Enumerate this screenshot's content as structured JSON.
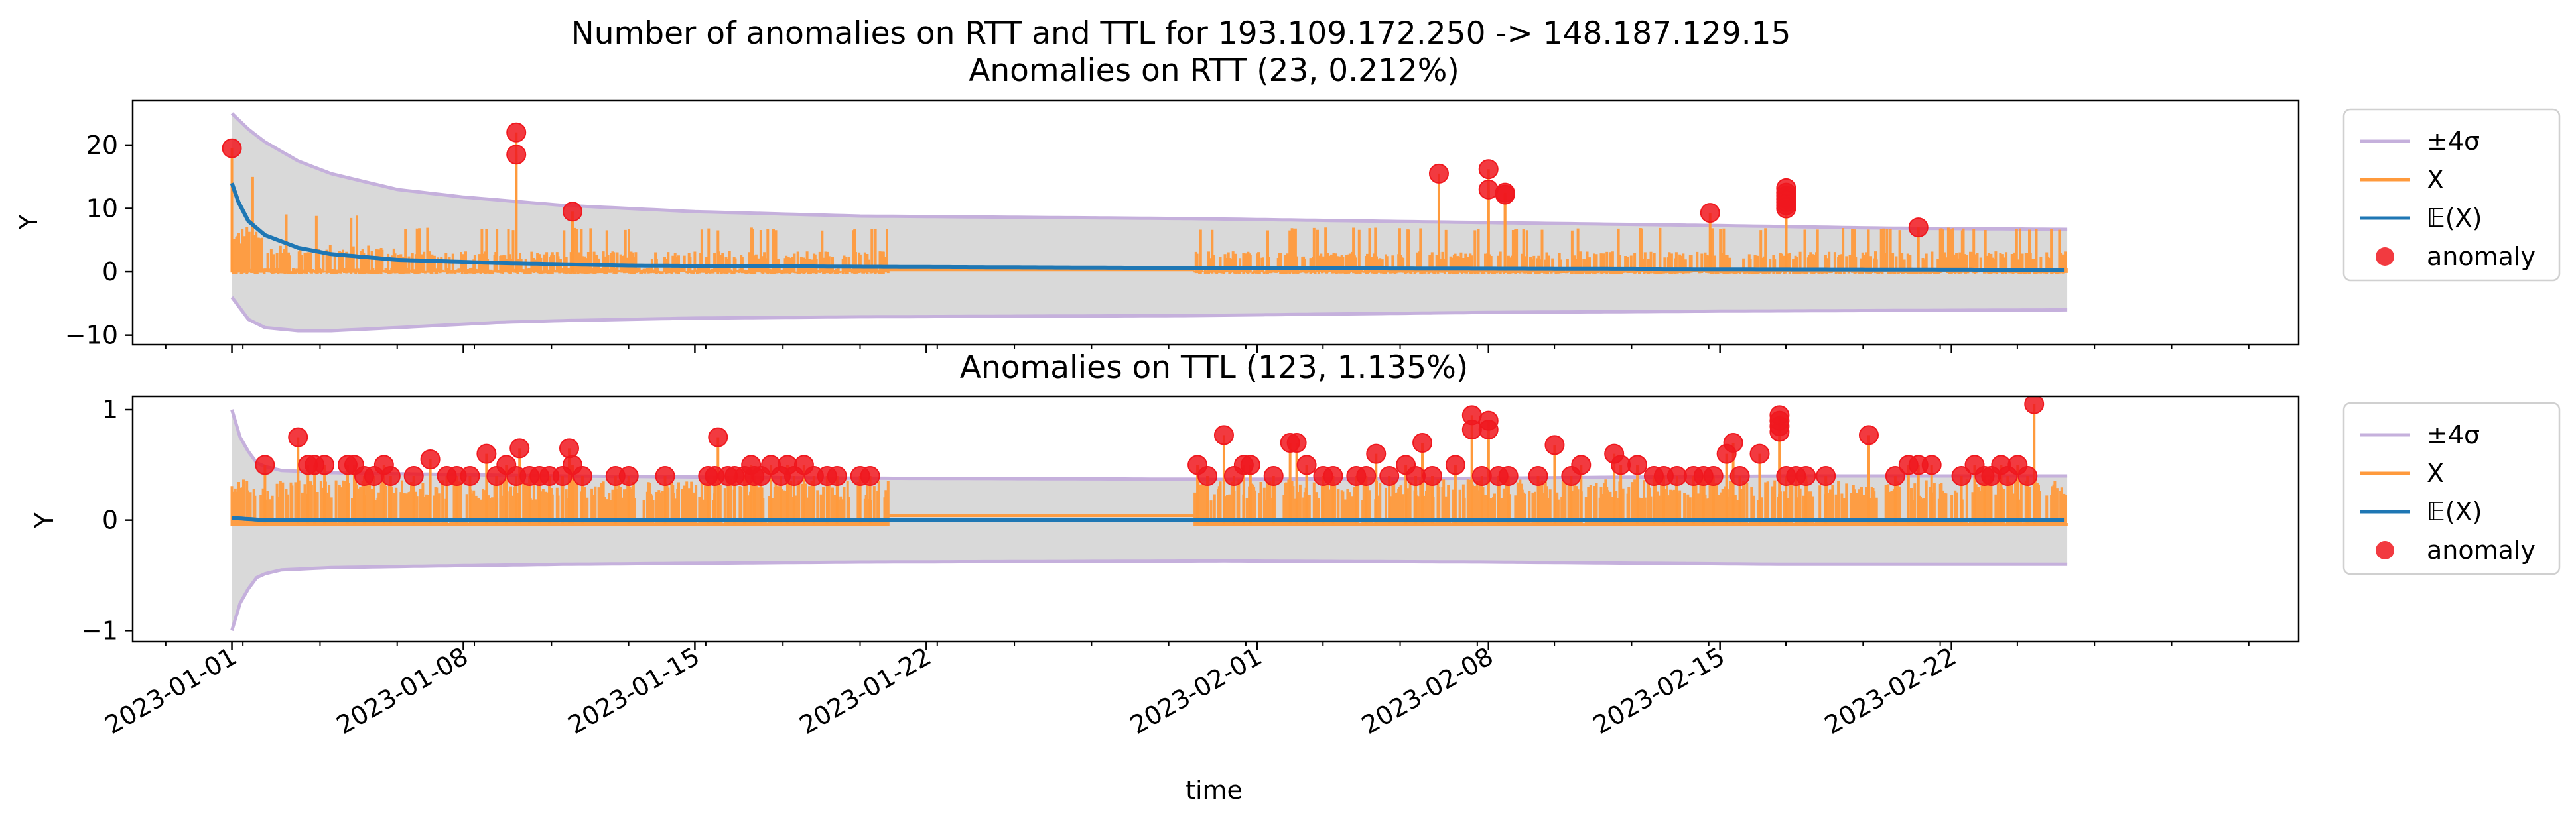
{
  "figure": {
    "suptitle": "Number of anomalies on RTT and TTL for 193.109.172.250 -> 148.187.129.15",
    "xlabel": "time",
    "colors": {
      "band_fill": "#d9d9d9",
      "band_line": "#c5b0dc",
      "x_series": "#ff9a3c",
      "expectation": "#1f77b4",
      "anomaly": "#f0181e"
    }
  },
  "legend": {
    "items": [
      "±4σ",
      "X",
      "𝔼(X)",
      "anomaly"
    ],
    "placement": "outside right, top of each panel"
  },
  "chart_data": [
    {
      "type": "line",
      "title": "Anomalies on RTT (23, 0.212%)",
      "xlabel": "time",
      "ylabel": "Y",
      "ylim": [
        -11.5,
        27
      ],
      "yticks": [
        -10,
        0,
        10,
        20
      ],
      "xlim": [
        "2022-12-28",
        "2023-02-28"
      ],
      "xticks": [
        "2023-01-01",
        "2023-01-08",
        "2023-01-15",
        "2023-01-22",
        "2023-02-01",
        "2023-02-08",
        "2023-02-15",
        "2023-02-22"
      ],
      "data_gaps": [
        [
          "2023-01-20.5",
          "2023-01-30"
        ]
      ],
      "series": [
        {
          "name": "±4σ",
          "upper": [
            [
              0,
              25
            ],
            [
              0.5,
              22.5
            ],
            [
              1,
              20.5
            ],
            [
              2,
              17.5
            ],
            [
              3,
              15.5
            ],
            [
              5,
              13
            ],
            [
              7,
              11.8
            ],
            [
              10,
              10.5
            ],
            [
              14,
              9.5
            ],
            [
              19,
              8.8
            ],
            [
              29,
              8.4
            ],
            [
              36,
              7.9
            ],
            [
              45,
              7.3
            ],
            [
              50,
              6.9
            ],
            [
              55.5,
              6.7
            ]
          ],
          "lower": [
            [
              0,
              -4
            ],
            [
              0.5,
              -7.5
            ],
            [
              1,
              -8.8
            ],
            [
              2,
              -9.3
            ],
            [
              3,
              -9.3
            ],
            [
              5,
              -8.8
            ],
            [
              8,
              -8
            ],
            [
              10,
              -7.7
            ],
            [
              14,
              -7.3
            ],
            [
              19,
              -7.1
            ],
            [
              29,
              -6.9
            ],
            [
              38,
              -6.4
            ],
            [
              45,
              -6.2
            ],
            [
              50,
              -6.1
            ],
            [
              55.5,
              -6
            ]
          ]
        },
        {
          "name": "X",
          "baseline": 0,
          "spike_peak_typical": 5
        },
        {
          "name": "𝔼(X)",
          "values": [
            [
              0,
              14
            ],
            [
              0.2,
              11
            ],
            [
              0.5,
              8
            ],
            [
              1,
              5.8
            ],
            [
              2,
              3.8
            ],
            [
              3,
              2.8
            ],
            [
              5,
              1.9
            ],
            [
              8,
              1.4
            ],
            [
              12,
              1.0
            ],
            [
              19,
              0.8
            ],
            [
              29,
              0.6
            ],
            [
              45,
              0.4
            ],
            [
              55.5,
              0.3
            ]
          ]
        },
        {
          "name": "anomaly",
          "points": [
            [
              0,
              19.5
            ],
            [
              8.6,
              22
            ],
            [
              8.6,
              18.5
            ],
            [
              10.3,
              9.5
            ],
            [
              36.5,
              15.5
            ],
            [
              38,
              16.2
            ],
            [
              38,
              13
            ],
            [
              38.5,
              12.5
            ],
            [
              38.5,
              12.2
            ],
            [
              44.7,
              9.3
            ],
            [
              47,
              13.2
            ],
            [
              47,
              12.5
            ],
            [
              47,
              12
            ],
            [
              47,
              11.5
            ],
            [
              47,
              11
            ],
            [
              47,
              10.5
            ],
            [
              47,
              10
            ],
            [
              51,
              7
            ]
          ]
        }
      ]
    },
    {
      "type": "line",
      "title": "Anomalies on TTL (123, 1.135%)",
      "xlabel": "time",
      "ylabel": "Y",
      "ylim": [
        -1.1,
        1.12
      ],
      "yticks": [
        -1,
        0,
        1
      ],
      "xlim": [
        "2023-01-01 -3d",
        "2023-02-28"
      ],
      "xticks": [
        "2023-01-01",
        "2023-01-08",
        "2023-01-15",
        "2023-01-22",
        "2023-02-01",
        "2023-02-08",
        "2023-02-15",
        "2023-02-22"
      ],
      "series": [
        {
          "name": "±4σ",
          "upper": [
            [
              0,
              1.0
            ],
            [
              0.3,
              0.7
            ],
            [
              0.8,
              0.5
            ],
            [
              1.5,
              0.45
            ],
            [
              3,
              0.43
            ],
            [
              5,
              0.42
            ],
            [
              10,
              0.4
            ],
            [
              19,
              0.38
            ],
            [
              30,
              0.37
            ],
            [
              38,
              0.38
            ],
            [
              47,
              0.4
            ],
            [
              55.5,
              0.4
            ]
          ],
          "lower": [
            [
              0,
              -1.0
            ],
            [
              0.3,
              -0.7
            ],
            [
              0.8,
              -0.5
            ],
            [
              1.5,
              -0.45
            ],
            [
              3,
              -0.43
            ],
            [
              5,
              -0.42
            ],
            [
              10,
              -0.4
            ],
            [
              19,
              -0.38
            ],
            [
              30,
              -0.37
            ],
            [
              38,
              -0.38
            ],
            [
              47,
              -0.4
            ],
            [
              55.5,
              -0.4
            ]
          ]
        },
        {
          "name": "X",
          "baseline": -0.03,
          "spike_peak_typical": 0.35
        },
        {
          "name": "𝔼(X)",
          "values": [
            [
              0,
              0.02
            ],
            [
              1,
              0.0
            ],
            [
              55.5,
              0.0
            ]
          ]
        },
        {
          "name": "anomaly",
          "points": [
            [
              1,
              0.5
            ],
            [
              2,
              0.75
            ],
            [
              2.3,
              0.5
            ],
            [
              2.5,
              0.5
            ],
            [
              2.8,
              0.5
            ],
            [
              3.5,
              0.5
            ],
            [
              3.7,
              0.5
            ],
            [
              4,
              0.4
            ],
            [
              4.3,
              0.4
            ],
            [
              4.6,
              0.5
            ],
            [
              4.8,
              0.4
            ],
            [
              5.5,
              0.4
            ],
            [
              6,
              0.55
            ],
            [
              6.5,
              0.4
            ],
            [
              6.8,
              0.4
            ],
            [
              7.2,
              0.4
            ],
            [
              7.7,
              0.6
            ],
            [
              8,
              0.4
            ],
            [
              8.3,
              0.5
            ],
            [
              8.6,
              0.4
            ],
            [
              8.7,
              0.65
            ],
            [
              9,
              0.4
            ],
            [
              9.3,
              0.4
            ],
            [
              9.6,
              0.4
            ],
            [
              10,
              0.4
            ],
            [
              10.2,
              0.65
            ],
            [
              10.3,
              0.5
            ],
            [
              10.6,
              0.4
            ],
            [
              11.6,
              0.4
            ],
            [
              12,
              0.4
            ],
            [
              13.1,
              0.4
            ],
            [
              14.4,
              0.4
            ],
            [
              14.6,
              0.4
            ],
            [
              14.7,
              0.75
            ],
            [
              15,
              0.4
            ],
            [
              15.2,
              0.4
            ],
            [
              15.5,
              0.4
            ],
            [
              15.7,
              0.5
            ],
            [
              15.8,
              0.4
            ],
            [
              16,
              0.4
            ],
            [
              16.3,
              0.5
            ],
            [
              16.6,
              0.4
            ],
            [
              16.8,
              0.5
            ],
            [
              17,
              0.4
            ],
            [
              17.3,
              0.5
            ],
            [
              17.6,
              0.4
            ],
            [
              18,
              0.4
            ],
            [
              18.3,
              0.4
            ],
            [
              19,
              0.4
            ],
            [
              19.3,
              0.4
            ],
            [
              29.2,
              0.5
            ],
            [
              29.5,
              0.4
            ],
            [
              30,
              0.77
            ],
            [
              30.3,
              0.4
            ],
            [
              30.6,
              0.5
            ],
            [
              30.8,
              0.5
            ],
            [
              31.5,
              0.4
            ],
            [
              32,
              0.7
            ],
            [
              32.2,
              0.7
            ],
            [
              32.5,
              0.5
            ],
            [
              33,
              0.4
            ],
            [
              33.3,
              0.4
            ],
            [
              34,
              0.4
            ],
            [
              34.3,
              0.4
            ],
            [
              34.6,
              0.6
            ],
            [
              35,
              0.4
            ],
            [
              35.5,
              0.5
            ],
            [
              35.8,
              0.4
            ],
            [
              36,
              0.7
            ],
            [
              36.3,
              0.4
            ],
            [
              37,
              0.5
            ],
            [
              37.5,
              0.95
            ],
            [
              37.5,
              0.82
            ],
            [
              37.8,
              0.4
            ],
            [
              38,
              0.9
            ],
            [
              38,
              0.82
            ],
            [
              38.3,
              0.4
            ],
            [
              38.6,
              0.4
            ],
            [
              39.5,
              0.4
            ],
            [
              40,
              0.68
            ],
            [
              40.5,
              0.4
            ],
            [
              40.8,
              0.5
            ],
            [
              41.8,
              0.6
            ],
            [
              42,
              0.5
            ],
            [
              42.5,
              0.5
            ],
            [
              43,
              0.4
            ],
            [
              43.3,
              0.4
            ],
            [
              43.7,
              0.4
            ],
            [
              44.2,
              0.4
            ],
            [
              44.5,
              0.4
            ],
            [
              44.8,
              0.4
            ],
            [
              45.2,
              0.6
            ],
            [
              45.4,
              0.7
            ],
            [
              45.6,
              0.4
            ],
            [
              46.2,
              0.6
            ],
            [
              46.8,
              0.95
            ],
            [
              46.8,
              0.9
            ],
            [
              46.8,
              0.85
            ],
            [
              46.8,
              0.8
            ],
            [
              47,
              0.4
            ],
            [
              47.3,
              0.4
            ],
            [
              47.6,
              0.4
            ],
            [
              48.2,
              0.4
            ],
            [
              49.5,
              0.77
            ],
            [
              50.3,
              0.4
            ],
            [
              50.7,
              0.5
            ],
            [
              51,
              0.5
            ],
            [
              51.4,
              0.5
            ],
            [
              52.3,
              0.4
            ],
            [
              52.7,
              0.5
            ],
            [
              53,
              0.4
            ],
            [
              53.2,
              0.4
            ],
            [
              53.5,
              0.5
            ],
            [
              53.7,
              0.4
            ],
            [
              54,
              0.5
            ],
            [
              54.3,
              0.4
            ],
            [
              54.5,
              1.05
            ]
          ]
        }
      ]
    }
  ]
}
